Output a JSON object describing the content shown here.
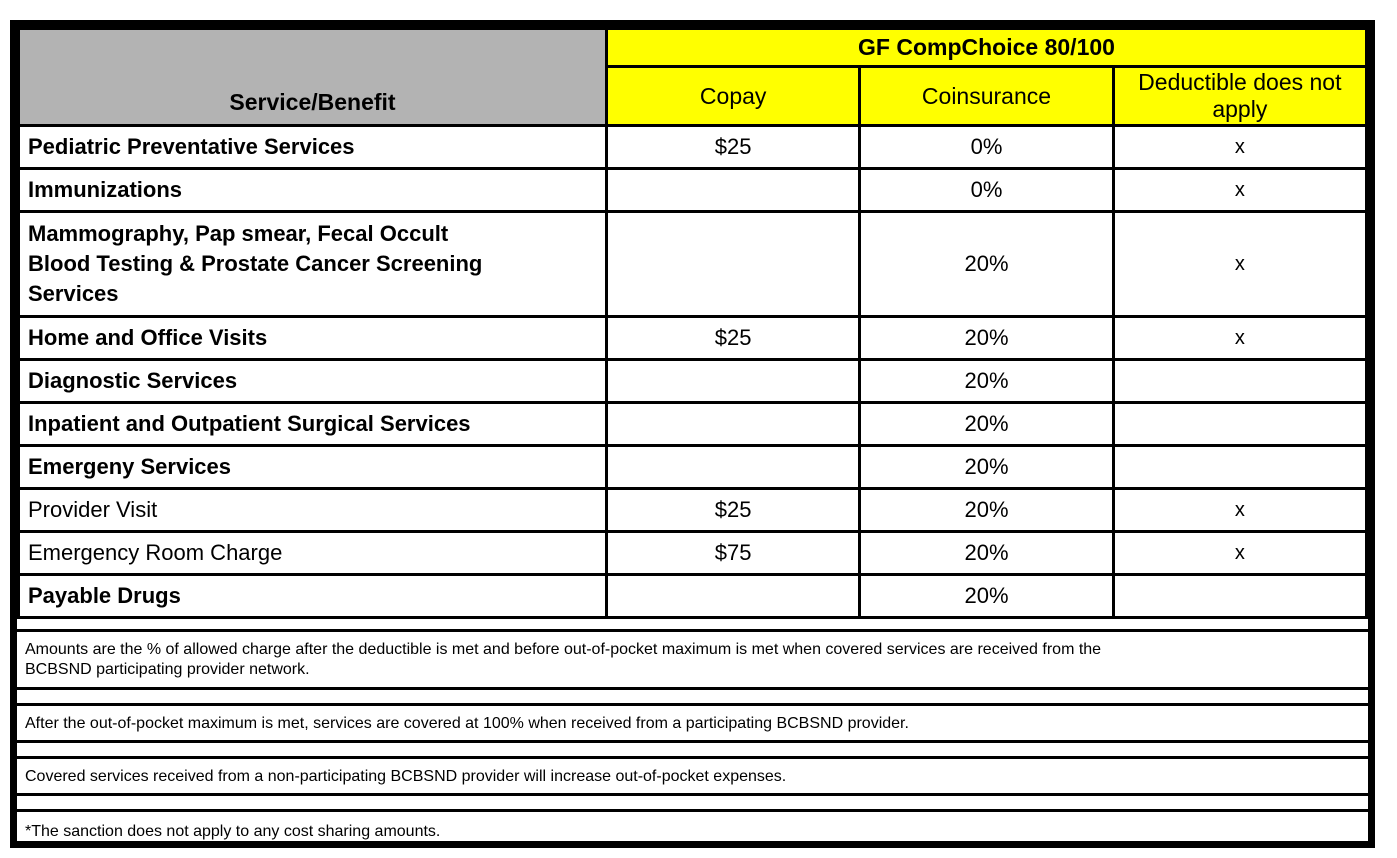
{
  "header": {
    "service_benefit_label": "Service/Benefit",
    "plan_title": "GF CompChoice 80/100",
    "copay_label": "Copay",
    "coinsurance_label": "Coinsurance",
    "deductible_label": "Deductible does not apply"
  },
  "rows": [
    {
      "service": "Pediatric Preventative Services",
      "copay": "$25",
      "coinsurance": "0%",
      "deductible": "x"
    },
    {
      "service": "Immunizations",
      "copay": "",
      "coinsurance": "0%",
      "deductible": "x"
    },
    {
      "service": "Mammography, Pap smear, Fecal Occult\nBlood Testing & Prostate Cancer Screening\nServices",
      "copay": "",
      "coinsurance": "20%",
      "deductible": "x"
    },
    {
      "service": "Home and Office Visits",
      "copay": "$25",
      "coinsurance": "20%",
      "deductible": "x"
    },
    {
      "service": "Diagnostic Services",
      "copay": "",
      "coinsurance": "20%",
      "deductible": ""
    },
    {
      "service": "Inpatient and Outpatient Surgical Services",
      "copay": "",
      "coinsurance": "20%",
      "deductible": ""
    },
    {
      "service": "Emergeny Services",
      "copay": "",
      "coinsurance": "20%",
      "deductible": ""
    },
    {
      "service": "Provider Visit",
      "copay": "$25",
      "coinsurance": "20%",
      "deductible": "x"
    },
    {
      "service": "Emergency Room Charge",
      "copay": "$75",
      "coinsurance": "20%",
      "deductible": "x"
    },
    {
      "service": "Payable Drugs",
      "copay": "",
      "coinsurance": "20%",
      "deductible": ""
    }
  ],
  "notes": [
    "Amounts are the % of allowed charge after the deductible is met and before out-of-pocket maximum is met when covered services are received from the\nBCBSND participating provider network.",
    "After the out-of-pocket maximum is met, services are covered at 100% when received from a participating BCBSND provider.",
    "Covered services received from a non-participating BCBSND provider will increase out-of-pocket expenses.",
    "*The sanction does not apply to any cost sharing amounts."
  ],
  "colors": {
    "header_yellow": "#ffff00",
    "header_gray": "#b3b3b3",
    "border_black": "#000000"
  }
}
